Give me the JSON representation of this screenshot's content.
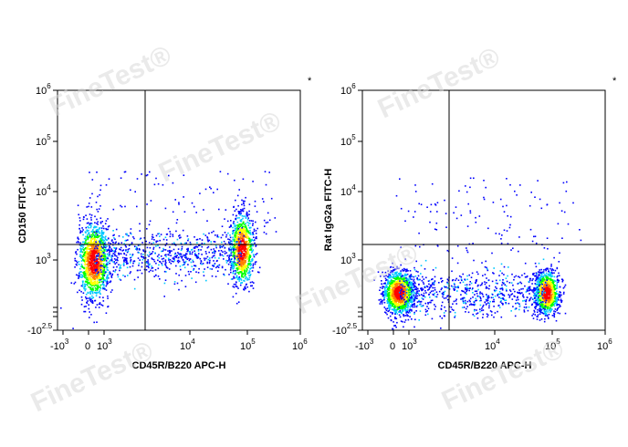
{
  "watermark": "FineTest®",
  "chart_data": [
    {
      "type": "scatter",
      "style": "pseudocolor density dot plot",
      "xlabel": "CD45R/B220 APC-H",
      "ylabel": "CD150 FITC-H",
      "marker": "*",
      "x_scale": "biexponential",
      "y_scale": "biexponential",
      "x_ticks": [
        "-10³",
        "0",
        "10³",
        "10⁴",
        "10⁵",
        "10⁶"
      ],
      "y_ticks": [
        "10⁶",
        "10⁵",
        "10⁴",
        "10³",
        "-10^2.5"
      ],
      "gate": {
        "x": 2500,
        "y": 1600
      },
      "populations": [
        {
          "name": "B220-negative",
          "x_center": 300,
          "y_center": 1000,
          "density": "high"
        },
        {
          "name": "B220-positive",
          "x_center": 80000,
          "y_center": 1500,
          "density": "medium"
        }
      ],
      "colors": [
        "#0000ff",
        "#00c8ff",
        "#00ff00",
        "#ffff00",
        "#ff8000",
        "#ff0000"
      ]
    },
    {
      "type": "scatter",
      "style": "pseudocolor density dot plot",
      "xlabel": "CD45R/B220 APC-H",
      "ylabel": "Rat IgG2a FITC-H",
      "marker": "*",
      "x_scale": "biexponential",
      "y_scale": "biexponential",
      "x_ticks": [
        "-10³",
        "0",
        "10³",
        "10⁴",
        "10⁵",
        "10⁶"
      ],
      "y_ticks": [
        "10⁶",
        "10⁵",
        "10⁴",
        "10³",
        "-10^2.5"
      ],
      "gate": {
        "x": 2500,
        "y": 1600
      },
      "populations": [
        {
          "name": "B220-negative",
          "x_center": 300,
          "y_center": 400,
          "density": "high"
        },
        {
          "name": "B220-positive",
          "x_center": 80000,
          "y_center": 400,
          "density": "medium"
        }
      ],
      "colors": [
        "#0000ff",
        "#00c8ff",
        "#00ff00",
        "#ffff00",
        "#ff8000",
        "#ff0000"
      ]
    }
  ]
}
